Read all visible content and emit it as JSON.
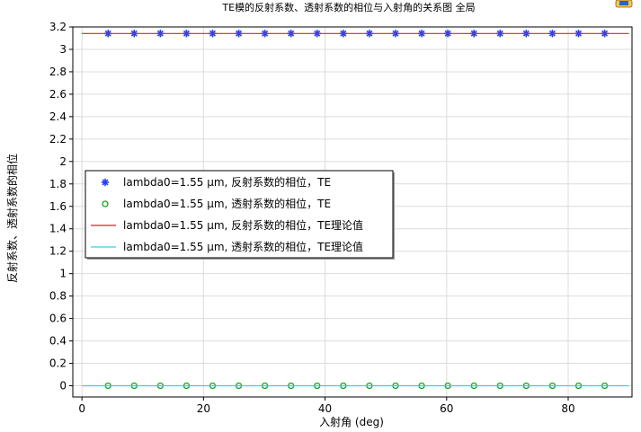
{
  "chart_data": {
    "type": "scatter",
    "title": "TE模的反射系数、透射系数的相位与入射角的关系图  全局",
    "xlabel": "入射角 (deg)",
    "ylabel": "反射系数、透射系数的相位",
    "xlim": [
      -1.5,
      90.5
    ],
    "ylim": [
      -0.1,
      3.2
    ],
    "xticks": [
      "0",
      "20",
      "40",
      "60",
      "80"
    ],
    "xtick_values": [
      0,
      20,
      40,
      60,
      80
    ],
    "yticks": [
      "0",
      "0.2",
      "0.4",
      "0.6",
      "0.8",
      "1",
      "1.2",
      "1.4",
      "1.6",
      "1.8",
      "2",
      "2.2",
      "2.4",
      "2.6",
      "2.8",
      "3",
      "3.2"
    ],
    "ytick_values": [
      0,
      0.2,
      0.4,
      0.6,
      0.8,
      1,
      1.2,
      1.4,
      1.6,
      1.8,
      2,
      2.2,
      2.4,
      2.6,
      2.8,
      3,
      3.2
    ],
    "grid": true,
    "legend_position": "center-left",
    "series": [
      {
        "name": "lambda0=1.55 µm, 反射系数的相位，TE",
        "kind": "marker-star",
        "color": "#1f3fff",
        "x": [
          4.3,
          8.6,
          12.9,
          17.2,
          21.5,
          25.8,
          30.1,
          34.4,
          38.7,
          43.0,
          47.3,
          51.6,
          55.9,
          60.2,
          64.5,
          68.8,
          73.1,
          77.4,
          81.7,
          86.0
        ],
        "y": [
          3.1416,
          3.1416,
          3.1416,
          3.1416,
          3.1416,
          3.1416,
          3.1416,
          3.1416,
          3.1416,
          3.1416,
          3.1416,
          3.1416,
          3.1416,
          3.1416,
          3.1416,
          3.1416,
          3.1416,
          3.1416,
          3.1416,
          3.1416
        ]
      },
      {
        "name": "lambda0=1.55 µm, 透射系数的相位，TE",
        "kind": "marker-circle",
        "color": "#1aa31a",
        "x": [
          4.3,
          8.6,
          12.9,
          17.2,
          21.5,
          25.8,
          30.1,
          34.4,
          38.7,
          43.0,
          47.3,
          51.6,
          55.9,
          60.2,
          64.5,
          68.8,
          73.1,
          77.4,
          81.7,
          86.0
        ],
        "y": [
          0,
          0,
          0,
          0,
          0,
          0,
          0,
          0,
          0,
          0,
          0,
          0,
          0,
          0,
          0,
          0,
          0,
          0,
          0,
          0
        ]
      },
      {
        "name": "lambda0=1.55 µm, 反射系数的相位，TE理论值",
        "kind": "line",
        "color": "#e0202a",
        "x": [
          0,
          90
        ],
        "y": [
          3.1416,
          3.1416
        ]
      },
      {
        "name": "lambda0=1.55 µm, 透射系数的相位，TE理论值",
        "kind": "line",
        "color": "#3fcfd6",
        "x": [
          0,
          90
        ],
        "y": [
          0,
          0
        ]
      }
    ]
  }
}
